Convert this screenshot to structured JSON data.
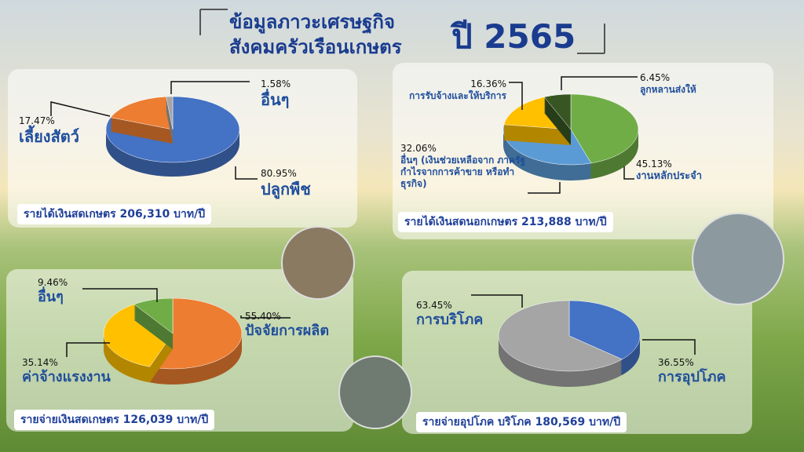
{
  "title": {
    "line1": "ข้อมูลภาวะเศรษฐกิจ",
    "line2": "สังคมครัวเรือนเกษตร",
    "year": "ปี 2565"
  },
  "chart_data": [
    {
      "type": "pie",
      "title": "รายได้เงินสดเกษตร  206,310 บาท/ปี",
      "categories": [
        "ปลูกพืช",
        "เลี้ยงสัตว์",
        "อื่นๆ"
      ],
      "values": [
        80.95,
        17.47,
        1.58
      ],
      "value_labels": [
        "80.95%",
        "17.47%",
        "1.58%"
      ],
      "colors": [
        "#4472c4",
        "#ed7d31",
        "#a5a5a5"
      ]
    },
    {
      "type": "pie",
      "title": "รายได้เงินสดนอกเกษตร  213,888 บาท/ปี",
      "categories": [
        "งานหลักประจำ",
        "อื่นๆ (เงินช่วยเหลือจาก ภาครัฐ กำไรจากการค้าขาย หรือทำธุรกิจ)",
        "การรับจ้างและให้บริการ",
        "ลูกหลานส่งให้"
      ],
      "values": [
        45.13,
        32.06,
        16.36,
        6.45
      ],
      "value_labels": [
        "45.13%",
        "32.06%",
        "16.36%",
        "6.45%"
      ],
      "colors": [
        "#70ad47",
        "#5b9bd5",
        "#ffc000",
        "#375623"
      ]
    },
    {
      "type": "pie",
      "title": "รายจ่ายเงินสดเกษตร  126,039 บาท/ปี",
      "categories": [
        "ปัจจัยการผลิต",
        "ค่าจ้างแรงงาน",
        "อื่นๆ"
      ],
      "values": [
        55.4,
        35.14,
        9.46
      ],
      "value_labels": [
        "55.40%",
        "35.14%",
        "9.46%"
      ],
      "colors": [
        "#ed7d31",
        "#ffc000",
        "#70ad47"
      ]
    },
    {
      "type": "pie",
      "title": "รายจ่ายอุปโภค บริโภค  180,569 บาท/ปี",
      "categories": [
        "การอุปโภค",
        "การบริโภค"
      ],
      "values": [
        36.55,
        63.45
      ],
      "value_labels": [
        "36.55%",
        "63.45%"
      ],
      "colors": [
        "#4472c4",
        "#a5a5a5"
      ]
    }
  ]
}
